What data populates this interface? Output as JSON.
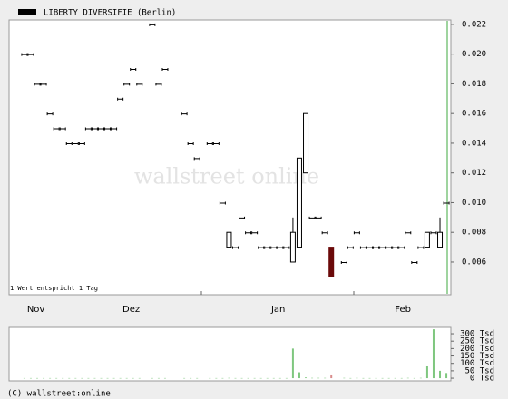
{
  "chart_data": [
    {
      "type": "candlestick",
      "annotation": "1 Wert entspricht 1 Tag",
      "watermark": "wallstreet online",
      "xlim": [
        -2.4,
        66.7
      ],
      "xticks": [
        {
          "value": 1.8,
          "label": "Nov"
        },
        {
          "value": 16.7,
          "label": "Dez"
        },
        {
          "value": 39.7,
          "label": "Jan"
        },
        {
          "value": 59.2,
          "label": "Feb"
        }
      ],
      "ylim": [
        0.0038,
        0.0223
      ],
      "yticks": [
        {
          "value": 0.006,
          "label": "0.006"
        },
        {
          "value": 0.008,
          "label": "0.008"
        },
        {
          "value": 0.01,
          "label": "0.010"
        },
        {
          "value": 0.012,
          "label": "0.012"
        },
        {
          "value": 0.014,
          "label": "0.014"
        },
        {
          "value": 0.016,
          "label": "0.016"
        },
        {
          "value": 0.018,
          "label": "0.018"
        },
        {
          "value": 0.02,
          "label": "0.020"
        },
        {
          "value": 0.022,
          "label": "0.022"
        }
      ],
      "series": [
        {
          "name": "LIBERTY DIVERSIFIE (Berlin)",
          "color": "#000000",
          "color_down": "#6b0a0a",
          "x": [
            0,
            1,
            2,
            3,
            4,
            5,
            6,
            7,
            8,
            9,
            10,
            11,
            12,
            13,
            14,
            15,
            16,
            17,
            18,
            20,
            21,
            22,
            25,
            26,
            27,
            29,
            30,
            31,
            32,
            33,
            34,
            35,
            36,
            37,
            38,
            39,
            40,
            41,
            42,
            43,
            44,
            45,
            46,
            47,
            48,
            50,
            51,
            52,
            53,
            54,
            55,
            56,
            57,
            58,
            59,
            60,
            61,
            62,
            63,
            64,
            65,
            66
          ],
          "open": [
            0.02,
            0.02,
            0.018,
            0.018,
            0.016,
            0.015,
            0.015,
            0.014,
            0.014,
            0.014,
            0.015,
            0.015,
            0.015,
            0.015,
            0.015,
            0.017,
            0.018,
            0.019,
            0.018,
            0.022,
            0.018,
            0.019,
            0.016,
            0.014,
            0.013,
            0.014,
            0.014,
            0.01,
            0.007,
            0.007,
            0.009,
            0.008,
            0.008,
            0.007,
            0.007,
            0.007,
            0.007,
            0.007,
            0.006,
            0.007,
            0.012,
            0.009,
            0.009,
            0.008,
            0.007,
            0.006,
            0.007,
            0.008,
            0.007,
            0.007,
            0.007,
            0.007,
            0.007,
            0.007,
            0.007,
            0.008,
            0.006,
            0.007,
            0.007,
            0.008,
            0.007,
            0.01
          ],
          "high": [
            0.02,
            0.02,
            0.018,
            0.018,
            0.016,
            0.015,
            0.015,
            0.014,
            0.014,
            0.014,
            0.015,
            0.015,
            0.015,
            0.015,
            0.015,
            0.017,
            0.018,
            0.019,
            0.018,
            0.022,
            0.018,
            0.019,
            0.016,
            0.014,
            0.013,
            0.014,
            0.014,
            0.01,
            0.008,
            0.007,
            0.009,
            0.008,
            0.008,
            0.007,
            0.007,
            0.007,
            0.007,
            0.007,
            0.009,
            0.013,
            0.016,
            0.009,
            0.009,
            0.008,
            0.007,
            0.006,
            0.007,
            0.008,
            0.007,
            0.007,
            0.007,
            0.007,
            0.007,
            0.007,
            0.007,
            0.008,
            0.006,
            0.007,
            0.008,
            0.008,
            0.009,
            0.01
          ],
          "low": [
            0.02,
            0.02,
            0.018,
            0.018,
            0.016,
            0.015,
            0.015,
            0.014,
            0.014,
            0.014,
            0.015,
            0.015,
            0.015,
            0.015,
            0.015,
            0.017,
            0.018,
            0.019,
            0.018,
            0.022,
            0.018,
            0.019,
            0.016,
            0.014,
            0.013,
            0.014,
            0.014,
            0.01,
            0.007,
            0.007,
            0.009,
            0.008,
            0.008,
            0.007,
            0.007,
            0.007,
            0.007,
            0.007,
            0.006,
            0.007,
            0.012,
            0.009,
            0.009,
            0.008,
            0.005,
            0.006,
            0.007,
            0.008,
            0.007,
            0.007,
            0.007,
            0.007,
            0.007,
            0.007,
            0.007,
            0.008,
            0.006,
            0.007,
            0.007,
            0.008,
            0.007,
            0.01
          ],
          "close": [
            0.02,
            0.02,
            0.018,
            0.018,
            0.016,
            0.015,
            0.015,
            0.014,
            0.014,
            0.014,
            0.015,
            0.015,
            0.015,
            0.015,
            0.015,
            0.017,
            0.018,
            0.019,
            0.018,
            0.022,
            0.018,
            0.019,
            0.016,
            0.014,
            0.013,
            0.014,
            0.014,
            0.01,
            0.008,
            0.007,
            0.009,
            0.008,
            0.008,
            0.007,
            0.007,
            0.007,
            0.007,
            0.007,
            0.008,
            0.013,
            0.016,
            0.009,
            0.009,
            0.008,
            0.005,
            0.006,
            0.007,
            0.008,
            0.007,
            0.007,
            0.007,
            0.007,
            0.007,
            0.007,
            0.007,
            0.008,
            0.006,
            0.007,
            0.008,
            0.008,
            0.008,
            0.01
          ]
        }
      ]
    },
    {
      "type": "bar",
      "color": "#7fc77f",
      "xlim": [
        -2.4,
        66.7
      ],
      "ylim": [
        -18,
        343
      ],
      "yticks": [
        {
          "value": 0,
          "label": "0 Tsd"
        },
        {
          "value": 50,
          "label": "50 Tsd"
        },
        {
          "value": 100,
          "label": "100 Tsd"
        },
        {
          "value": 150,
          "label": "150 Tsd"
        },
        {
          "value": 200,
          "label": "200 Tsd"
        },
        {
          "value": 250,
          "label": "250 Tsd"
        },
        {
          "value": 300,
          "label": "300 Tsd"
        }
      ],
      "x": [
        0,
        1,
        2,
        3,
        4,
        5,
        6,
        7,
        8,
        9,
        10,
        11,
        12,
        13,
        14,
        15,
        16,
        17,
        18,
        20,
        21,
        22,
        25,
        26,
        27,
        29,
        30,
        31,
        32,
        33,
        34,
        35,
        36,
        37,
        38,
        39,
        40,
        41,
        42,
        43,
        44,
        45,
        46,
        47,
        48,
        50,
        51,
        52,
        53,
        54,
        55,
        56,
        57,
        58,
        59,
        60,
        61,
        62,
        63,
        64,
        65,
        66
      ],
      "values": [
        1,
        1,
        1,
        1,
        1,
        1,
        1,
        1,
        1,
        1,
        1,
        1,
        1,
        1,
        1,
        1,
        1,
        1,
        1,
        1,
        1,
        1,
        1,
        1,
        1,
        1,
        1,
        1,
        2,
        1,
        1,
        1,
        1,
        1,
        1,
        1,
        1,
        1,
        200,
        40,
        5,
        2,
        2,
        2,
        25,
        2,
        1,
        2,
        1,
        1,
        1,
        1,
        1,
        1,
        1,
        2,
        1,
        2,
        80,
        330,
        50,
        35
      ]
    }
  ],
  "footer": "(C) wallstreet:online"
}
